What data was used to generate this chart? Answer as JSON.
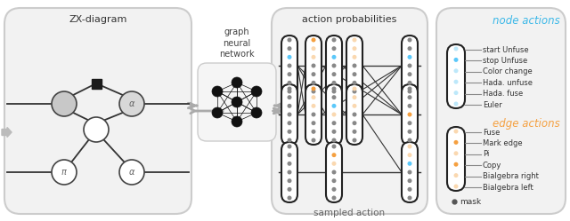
{
  "bg_color": "#ffffff",
  "zx_title": "ZX-diagram",
  "gnn_label": "graph\nneural\nnetwork",
  "ap_title": "action probabilities",
  "sampled_action": "sampled action",
  "node_actions_label": "node actions",
  "node_actions_color": "#3bb8e8",
  "edge_actions_label": "edge actions",
  "edge_actions_color": "#f5a040",
  "node_action_items": [
    "start Unfuse",
    "stop Unfuse",
    "Color change",
    "Hada. unfuse",
    "Hada. fuse",
    "Euler"
  ],
  "edge_action_items": [
    "Fuse",
    "Mark edge",
    "Pi",
    "Copy",
    "Bialgebra right",
    "Bialgebra left"
  ],
  "mask_label": "mask",
  "blue_dot": "#5bc8fa",
  "blue_light": "#bde8fa",
  "orange_dot": "#f5a040",
  "orange_light": "#fad8b0",
  "gray_dot": "#888888",
  "pill_bg": "#ffffff",
  "pill_edge": "#222222",
  "panel_bg": "#f2f2f2",
  "panel_ec": "#cccccc",
  "line_color": "#333333",
  "arrow_color": "#aaaaaa",
  "text_color": "#444444"
}
